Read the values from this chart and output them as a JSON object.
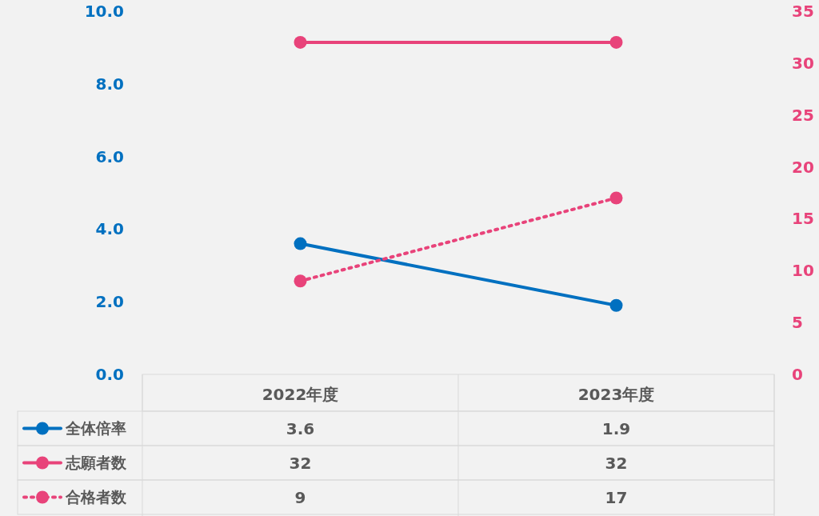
{
  "chart_data": {
    "type": "line",
    "categories": [
      "2022年度",
      "2023年度"
    ],
    "series": [
      {
        "name": "全体倍率",
        "color": "#0070c0",
        "values": [
          3.6,
          1.9
        ],
        "line_style": "solid"
      },
      {
        "name": "志願者数",
        "color": "#e8437a",
        "values": [
          32,
          32
        ],
        "axis": "y2",
        "line_style": "solid"
      },
      {
        "name": "合格者数",
        "color": "#e8437a",
        "values": [
          9,
          17
        ],
        "axis": "y2",
        "line_style": "dotted"
      }
    ],
    "ylim": [
      0,
      10
    ],
    "yticks": [
      {
        "value": 0,
        "label": "0.0"
      },
      {
        "value": 2,
        "label": "2.0"
      },
      {
        "value": 4,
        "label": "4.0"
      },
      {
        "value": 6,
        "label": "6.0"
      },
      {
        "value": 8,
        "label": "8.0"
      },
      {
        "value": 10,
        "label": "10.0"
      }
    ],
    "y2lim": [
      0,
      35
    ],
    "y2ticks": [
      0,
      5,
      10,
      15,
      20,
      25,
      30,
      35
    ],
    "marker": "circle",
    "data_labels": true,
    "legend": "bottom",
    "grid": false
  }
}
